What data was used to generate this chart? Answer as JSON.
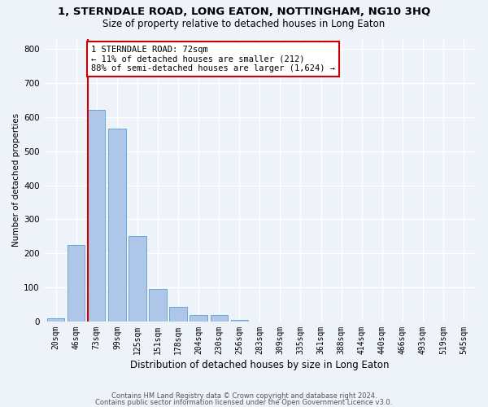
{
  "title": "1, STERNDALE ROAD, LONG EATON, NOTTINGHAM, NG10 3HQ",
  "subtitle": "Size of property relative to detached houses in Long Eaton",
  "xlabel": "Distribution of detached houses by size in Long Eaton",
  "ylabel": "Number of detached properties",
  "categories": [
    "20sqm",
    "46sqm",
    "73sqm",
    "99sqm",
    "125sqm",
    "151sqm",
    "178sqm",
    "204sqm",
    "230sqm",
    "256sqm",
    "283sqm",
    "309sqm",
    "335sqm",
    "361sqm",
    "388sqm",
    "414sqm",
    "440sqm",
    "466sqm",
    "493sqm",
    "519sqm",
    "545sqm"
  ],
  "values": [
    10,
    225,
    620,
    565,
    250,
    95,
    42,
    20,
    20,
    5,
    0,
    0,
    0,
    0,
    0,
    0,
    0,
    0,
    0,
    0,
    0
  ],
  "bar_color": "#aec6e8",
  "bar_edge_color": "#5a9fd4",
  "property_label": "1 STERNDALE ROAD: 72sqm",
  "annotation_line1": "← 11% of detached houses are smaller (212)",
  "annotation_line2": "88% of semi-detached houses are larger (1,624) →",
  "vline_x_index": 2,
  "vline_color": "#cc0000",
  "annotation_box_color": "#cc0000",
  "ylim": [
    0,
    830
  ],
  "yticks": [
    0,
    100,
    200,
    300,
    400,
    500,
    600,
    700,
    800
  ],
  "footer_line1": "Contains HM Land Registry data © Crown copyright and database right 2024.",
  "footer_line2": "Contains public sector information licensed under the Open Government Licence v3.0.",
  "bg_color": "#eef2f9",
  "plot_bg_color": "#eef2f9",
  "grid_color": "#ffffff",
  "title_fontsize": 9.5,
  "subtitle_fontsize": 8.5,
  "xlabel_fontsize": 8.5,
  "ylabel_fontsize": 7.5,
  "tick_fontsize": 7,
  "annotation_fontsize": 7.5,
  "footer_fontsize": 6,
  "bar_width": 0.85
}
